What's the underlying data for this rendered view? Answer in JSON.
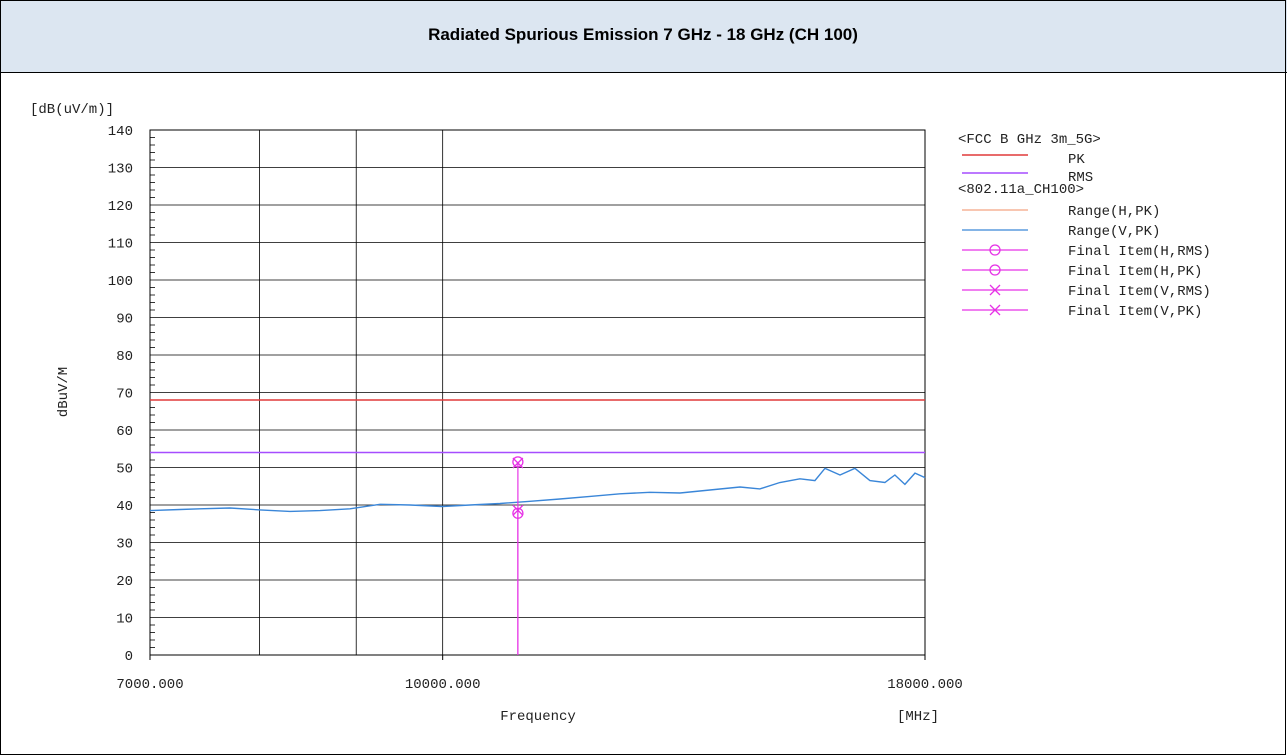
{
  "chart_data": {
    "type": "line",
    "title": "Radiated Spurious Emission 7 GHz - 18 GHz (CH 100)",
    "y_unit": "[dB(uV/m)]",
    "ylabel": "dBuV/M",
    "xlabel": "Frequency",
    "x_unit": "[MHz]",
    "xscale": "log",
    "xlim": [
      7000,
      18000
    ],
    "ylim": [
      0,
      140
    ],
    "yticks": [
      0,
      10,
      20,
      30,
      40,
      50,
      60,
      70,
      80,
      90,
      100,
      110,
      120,
      130,
      140
    ],
    "xticks": [
      {
        "value": 7000,
        "label": "7000.000"
      },
      {
        "value": 10000,
        "label": "10000.000"
      },
      {
        "value": 18000,
        "label": "18000.000"
      }
    ],
    "xgrid": [
      8000,
      9000,
      10000
    ],
    "grid": true,
    "legend_groups": [
      "<FCC B GHz 3m_5G>",
      "<802.11a_CH100>"
    ],
    "limits": [
      {
        "name": "PK",
        "color": "#e03a3a",
        "value": 68
      },
      {
        "name": "RMS",
        "color": "#a64dff",
        "value": 54
      }
    ],
    "series": [
      {
        "name": "Range(H,PK)",
        "color": "#f4a582",
        "x": [],
        "values": []
      },
      {
        "name": "Range(V,PK)",
        "color": "#3a86d8",
        "x": [
          7000,
          7261,
          7440,
          7717,
          8004,
          8302,
          8611,
          8932,
          9265,
          9610,
          9993,
          10339,
          10723,
          11123,
          11536,
          11966,
          12412,
          12873,
          13353,
          13850,
          14366,
          14719,
          15082,
          15455,
          15739,
          15934,
          16228,
          16527,
          16832,
          17141,
          17352,
          17565,
          17781,
          18000
        ],
        "values": [
          38.5,
          38.8,
          39,
          39.2,
          38.7,
          38.3,
          38.5,
          39,
          40.2,
          40,
          39.6,
          40,
          40.4,
          41,
          41.6,
          42.3,
          43,
          43.4,
          43.2,
          44,
          44.8,
          44.3,
          46,
          47,
          46.5,
          49.8,
          48,
          49.8,
          46.5,
          46,
          48,
          45.5,
          48.5,
          47.3
        ]
      },
      {
        "name": "Final Item(H,RMS)",
        "color": "#e632e6",
        "marker": "circle",
        "x": [
          10960
        ],
        "values": [
          37.8
        ]
      },
      {
        "name": "Final Item(H,PK)",
        "color": "#e632e6",
        "marker": "circle",
        "x": [
          10960
        ],
        "values": [
          51.5
        ]
      },
      {
        "name": "Final Item(V,RMS)",
        "color": "#e632e6",
        "marker": "cross",
        "x": [
          10960
        ],
        "values": [
          38.6
        ]
      },
      {
        "name": "Final Item(V,PK)",
        "color": "#e632e6",
        "marker": "cross",
        "x": [
          10960
        ],
        "values": [
          51.2
        ]
      }
    ]
  }
}
